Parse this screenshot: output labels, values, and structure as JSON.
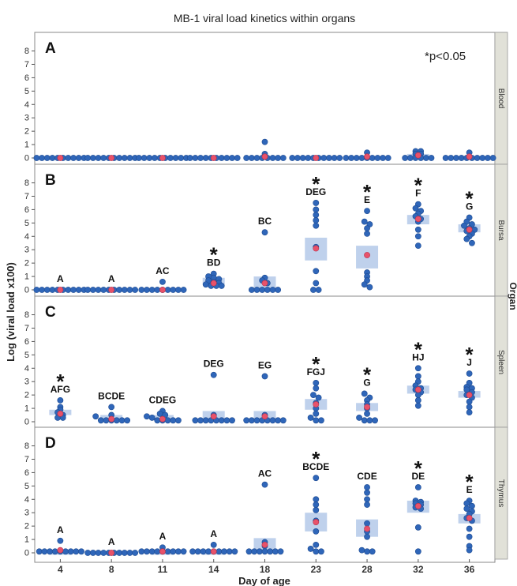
{
  "chart_data": {
    "type": "scatter",
    "title": "MB-1 viral load kinetics within organs",
    "xlabel": "Day of age",
    "ylabel": "Log (viral load x100)",
    "right_axis_label": "Organ",
    "annotation": "*p<0.05",
    "x_categories": [
      "4",
      "8",
      "11",
      "14",
      "18",
      "23",
      "28",
      "32",
      "36"
    ],
    "y_ticks": [
      "0",
      "1",
      "2",
      "3",
      "4",
      "5",
      "6",
      "7",
      "8"
    ],
    "ylim": [
      0,
      8.8
    ],
    "colors": {
      "point": "#2f66b9",
      "median": "#e8526a",
      "box": "#a9c1e6",
      "strip": "#e1e1d8",
      "panel_bg": "#ffffff"
    },
    "panels": [
      {
        "letter": "A",
        "organ": "Blood",
        "groups": [
          {
            "day": "4",
            "points": [
              0,
              0,
              0,
              0,
              0,
              0,
              0,
              0,
              0,
              0
            ],
            "median": 0,
            "box": [
              0,
              0
            ],
            "letters": "",
            "star": false
          },
          {
            "day": "8",
            "points": [
              0,
              0,
              0,
              0,
              0,
              0,
              0,
              0,
              0,
              0
            ],
            "median": 0,
            "box": [
              0,
              0
            ],
            "letters": "",
            "star": false
          },
          {
            "day": "11",
            "points": [
              0,
              0,
              0,
              0,
              0,
              0,
              0,
              0,
              0,
              0
            ],
            "median": 0,
            "box": [
              0,
              0
            ],
            "letters": "",
            "star": false
          },
          {
            "day": "14",
            "points": [
              0,
              0,
              0,
              0,
              0,
              0,
              0,
              0,
              0,
              0
            ],
            "median": 0,
            "box": [
              0,
              0
            ],
            "letters": "",
            "star": false
          },
          {
            "day": "18",
            "points": [
              1.2,
              0.3,
              0,
              0,
              0,
              0,
              0,
              0,
              0,
              0
            ],
            "median": 0.1,
            "box": [
              0,
              0
            ],
            "letters": "",
            "star": false
          },
          {
            "day": "23",
            "points": [
              0,
              0,
              0,
              0,
              0,
              0,
              0,
              0,
              0,
              0
            ],
            "median": 0,
            "box": [
              0,
              0
            ],
            "letters": "",
            "star": false
          },
          {
            "day": "28",
            "points": [
              0.4,
              0,
              0,
              0,
              0,
              0,
              0,
              0,
              0,
              0
            ],
            "median": 0.1,
            "box": [
              0,
              0
            ],
            "letters": "",
            "star": false
          },
          {
            "day": "32",
            "points": [
              0.5,
              0.5,
              0.3,
              0.3,
              0,
              0,
              0,
              0,
              0,
              0
            ],
            "median": 0.2,
            "box": [
              0,
              0.3
            ],
            "letters": "",
            "star": false
          },
          {
            "day": "36",
            "points": [
              0.4,
              0,
              0,
              0,
              0,
              0,
              0,
              0,
              0,
              0,
              0
            ],
            "median": 0.1,
            "box": [
              0,
              0
            ],
            "letters": "",
            "star": false
          }
        ]
      },
      {
        "letter": "B",
        "organ": "Bursa",
        "groups": [
          {
            "day": "4",
            "points": [
              0,
              0,
              0,
              0,
              0,
              0,
              0,
              0,
              0,
              0
            ],
            "median": 0,
            "box": [
              0,
              0
            ],
            "letters": "A",
            "star": false
          },
          {
            "day": "8",
            "points": [
              0,
              0,
              0,
              0,
              0,
              0,
              0,
              0,
              0,
              0
            ],
            "median": 0,
            "box": [
              0,
              0
            ],
            "letters": "A",
            "star": false
          },
          {
            "day": "11",
            "points": [
              0.6,
              0,
              0,
              0,
              0,
              0,
              0,
              0,
              0,
              0
            ],
            "median": 0,
            "box": [
              0,
              0
            ],
            "letters": "AC",
            "star": false
          },
          {
            "day": "14",
            "points": [
              1.2,
              1.0,
              0.9,
              0.8,
              0.7,
              0.6,
              0.5,
              0.4,
              0.3,
              0.3,
              0.3
            ],
            "median": 0.5,
            "box": [
              0.4,
              0.9
            ],
            "letters": "BD",
            "star": true
          },
          {
            "day": "18",
            "points": [
              4.3,
              0.9,
              0.7,
              0.5,
              0,
              0,
              0,
              0,
              0,
              0
            ],
            "median": 0.5,
            "box": [
              0,
              1.0
            ],
            "letters": "BC",
            "star": false
          },
          {
            "day": "23",
            "points": [
              6.5,
              6.0,
              5.6,
              5.2,
              4.8,
              3.2,
              1.4,
              0.5,
              0,
              0
            ],
            "median": 3.1,
            "box": [
              2.2,
              3.9
            ],
            "letters": "DEG",
            "star": true
          },
          {
            "day": "28",
            "points": [
              5.9,
              5.1,
              4.9,
              4.6,
              4.2,
              1.3,
              1.0,
              0.7,
              0.4,
              0.2
            ],
            "median": 2.6,
            "box": [
              1.6,
              3.3
            ],
            "letters": "E",
            "star": true
          },
          {
            "day": "32",
            "points": [
              6.4,
              6.1,
              5.9,
              5.7,
              5.5,
              5.3,
              5.1,
              4.5,
              4.0,
              3.3
            ],
            "median": 5.3,
            "box": [
              4.9,
              5.6
            ],
            "letters": "F",
            "star": true
          },
          {
            "day": "36",
            "points": [
              5.4,
              5.1,
              4.9,
              4.8,
              4.6,
              4.5,
              4.4,
              4.2,
              4.0,
              3.8,
              3.5
            ],
            "median": 4.5,
            "box": [
              4.3,
              4.9
            ],
            "letters": "G",
            "star": true
          }
        ]
      },
      {
        "letter": "C",
        "organ": "Spleen",
        "groups": [
          {
            "day": "4",
            "points": [
              1.6,
              1.1,
              0.9,
              0.7,
              0.5,
              0.3,
              0.3
            ],
            "median": 0.6,
            "box": [
              0.5,
              0.9
            ],
            "letters": "AFG",
            "star": true
          },
          {
            "day": "8",
            "points": [
              1.1,
              0.5,
              0.4,
              0.1,
              0.1,
              0.1,
              0.1,
              0.1,
              0.1
            ],
            "median": 0.2,
            "box": [
              0.1,
              0.5
            ],
            "letters": "BCDE",
            "star": false
          },
          {
            "day": "11",
            "points": [
              0.8,
              0.6,
              0.5,
              0.4,
              0.3,
              0.1,
              0.1,
              0.1,
              0.1,
              0.1
            ],
            "median": 0.2,
            "box": [
              0.1,
              0.5
            ],
            "letters": "CDEG",
            "star": false
          },
          {
            "day": "14",
            "points": [
              3.5,
              0.5,
              0.1,
              0.1,
              0.1,
              0.1,
              0.1,
              0.1,
              0.1,
              0.1
            ],
            "median": 0.4,
            "box": [
              0.1,
              0.8
            ],
            "letters": "DEG",
            "star": false
          },
          {
            "day": "18",
            "points": [
              3.4,
              0.5,
              0.1,
              0.1,
              0.1,
              0.1,
              0.1,
              0.1,
              0.1,
              0.1
            ],
            "median": 0.4,
            "box": [
              0.1,
              0.8
            ],
            "letters": "EG",
            "star": false
          },
          {
            "day": "23",
            "points": [
              2.9,
              2.5,
              2.0,
              1.8,
              1.4,
              1.0,
              0.6,
              0.3,
              0.1,
              0.1
            ],
            "median": 1.3,
            "box": [
              0.9,
              1.7
            ],
            "letters": "FGJ",
            "star": true
          },
          {
            "day": "28",
            "points": [
              2.1,
              1.8,
              1.6,
              1.3,
              1.0,
              0.6,
              0.3,
              0.1,
              0.1,
              0.1
            ],
            "median": 1.1,
            "box": [
              0.8,
              1.4
            ],
            "letters": "G",
            "star": true
          },
          {
            "day": "32",
            "points": [
              4.0,
              3.4,
              3.0,
              2.7,
              2.5,
              2.4,
              2.2,
              2.0,
              1.6,
              1.2
            ],
            "median": 2.4,
            "box": [
              2.1,
              2.7
            ],
            "letters": "HJ",
            "star": true
          },
          {
            "day": "36",
            "points": [
              3.6,
              2.9,
              2.6,
              2.5,
              2.4,
              2.2,
              2.0,
              1.8,
              1.5,
              1.1,
              0.7
            ],
            "median": 2.0,
            "box": [
              1.8,
              2.3
            ],
            "letters": "J",
            "star": true
          }
        ]
      },
      {
        "letter": "D",
        "organ": "Thymus",
        "groups": [
          {
            "day": "4",
            "points": [
              0.9,
              0.1,
              0.1,
              0.1,
              0.1,
              0.1,
              0.1,
              0.1,
              0.1,
              0.1
            ],
            "median": 0.2,
            "box": [
              0,
              0.2
            ],
            "letters": "A",
            "star": false
          },
          {
            "day": "8",
            "points": [
              0,
              0,
              0,
              0,
              0,
              0,
              0,
              0,
              0,
              0
            ],
            "median": 0,
            "box": [
              0,
              0
            ],
            "letters": "A",
            "star": false
          },
          {
            "day": "11",
            "points": [
              0.4,
              0.1,
              0.1,
              0.1,
              0.1,
              0.1,
              0.1,
              0.1,
              0.1,
              0.1
            ],
            "median": 0.1,
            "box": [
              0,
              0.2
            ],
            "letters": "A",
            "star": false
          },
          {
            "day": "14",
            "points": [
              0.6,
              0.1,
              0.1,
              0.1,
              0.1,
              0.1,
              0.1,
              0.1,
              0.1,
              0.1
            ],
            "median": 0.1,
            "box": [
              0,
              0.2
            ],
            "letters": "A",
            "star": false
          },
          {
            "day": "18",
            "points": [
              5.1,
              0.8,
              0.5,
              0.1,
              0.1,
              0.1,
              0.1,
              0.1,
              0.1,
              0.1
            ],
            "median": 0.6,
            "box": [
              0.1,
              1.1
            ],
            "letters": "AC",
            "star": false
          },
          {
            "day": "23",
            "points": [
              5.6,
              4.0,
              3.6,
              3.2,
              2.4,
              1.6,
              0.6,
              0.3,
              0.1,
              0.1
            ],
            "median": 2.3,
            "box": [
              1.6,
              3.0
            ],
            "letters": "BCDE",
            "star": true
          },
          {
            "day": "28",
            "points": [
              4.9,
              4.5,
              4.0,
              3.6,
              2.2,
              1.6,
              1.2,
              0.2,
              0.1,
              0.1
            ],
            "median": 1.8,
            "box": [
              1.2,
              2.5
            ],
            "letters": "CDE",
            "star": false
          },
          {
            "day": "32",
            "points": [
              4.9,
              3.9,
              3.8,
              3.7,
              3.6,
              3.4,
              3.3,
              1.9,
              0.1
            ],
            "median": 3.5,
            "box": [
              3.0,
              3.9
            ],
            "letters": "DE",
            "star": true
          },
          {
            "day": "36",
            "points": [
              3.9,
              3.7,
              3.5,
              3.3,
              3.1,
              2.9,
              2.6,
              2.4,
              1.8,
              1.2,
              0.5,
              0.2
            ],
            "median": 2.6,
            "box": [
              2.2,
              2.9
            ],
            "letters": "E",
            "star": true
          }
        ]
      }
    ]
  }
}
